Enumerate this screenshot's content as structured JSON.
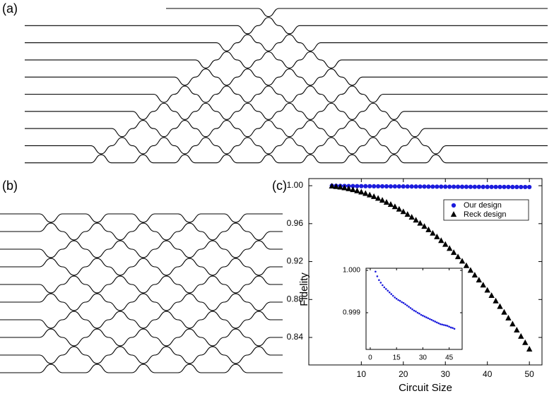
{
  "panels": [
    "(a)",
    "(b)",
    "(c)"
  ],
  "chart_data": [
    {
      "type": "scatter",
      "xlabel": "Circuit Size",
      "ylabel": "Fidelity",
      "x": [
        3,
        4,
        5,
        6,
        7,
        8,
        9,
        10,
        11,
        12,
        13,
        14,
        15,
        16,
        17,
        18,
        19,
        20,
        21,
        22,
        23,
        24,
        25,
        26,
        27,
        28,
        29,
        30,
        31,
        32,
        33,
        34,
        35,
        36,
        37,
        38,
        39,
        40,
        41,
        42,
        43,
        44,
        45,
        46,
        47,
        48,
        49,
        50
      ],
      "series": [
        {
          "name": "Our design",
          "color": "#1c1cdc",
          "marker": "circle",
          "values": [
            0.99997,
            0.99986,
            0.99977,
            0.99971,
            0.99965,
            0.9996,
            0.99956,
            0.99952,
            0.99948,
            0.99944,
            0.9994,
            0.99936,
            0.99933,
            0.9993,
            0.99928,
            0.99925,
            0.99923,
            0.9992,
            0.99917,
            0.99914,
            0.99911,
            0.99908,
            0.99905,
            0.99903,
            0.999,
            0.99898,
            0.99895,
            0.99893,
            0.99891,
            0.99889,
            0.99887,
            0.99885,
            0.99883,
            0.99881,
            0.99879,
            0.99877,
            0.99875,
            0.99873,
            0.99872,
            0.99871,
            0.9987,
            0.99869,
            0.99867,
            0.99865,
            0.99864,
            0.99862,
            0.99861,
            0.9986
          ]
        },
        {
          "name": "Reck design",
          "color": "#000000",
          "marker": "triangle",
          "values": [
            0.99938,
            0.9989,
            0.99828,
            0.99752,
            0.99662,
            0.99558,
            0.99441,
            0.9931,
            0.99165,
            0.99006,
            0.98834,
            0.98648,
            0.98448,
            0.98234,
            0.98006,
            0.97764,
            0.97509,
            0.9724,
            0.96957,
            0.9666,
            0.9635,
            0.96026,
            0.95688,
            0.95336,
            0.9497,
            0.9459,
            0.94197,
            0.9379,
            0.93369,
            0.92934,
            0.92486,
            0.92024,
            0.91548,
            0.91058,
            0.90554,
            0.90036,
            0.89505,
            0.8896,
            0.88401,
            0.87828,
            0.87242,
            0.86642,
            0.86028,
            0.854,
            0.84758,
            0.84102,
            0.83433,
            0.8275
          ]
        }
      ],
      "xlim": [
        -2.5,
        53
      ],
      "ylim": [
        0.811,
        1.0075
      ],
      "xticks": [
        10,
        20,
        30,
        40,
        50
      ],
      "yticks": [
        0.84,
        0.88,
        0.92,
        0.96,
        {
          "value": 1.0,
          "label": "1.00"
        }
      ],
      "legend": "upper right"
    },
    {
      "type": "scatter",
      "x": [
        3,
        4,
        5,
        6,
        7,
        8,
        9,
        10,
        11,
        12,
        13,
        14,
        15,
        16,
        17,
        18,
        19,
        20,
        21,
        22,
        23,
        24,
        25,
        26,
        27,
        28,
        29,
        30,
        31,
        32,
        33,
        34,
        35,
        36,
        37,
        38,
        39,
        40,
        41,
        42,
        43,
        44,
        45,
        46,
        47,
        48
      ],
      "series": [
        {
          "color": "#1c1cdc",
          "marker": "circle",
          "values": [
            0.99997,
            0.99986,
            0.99977,
            0.99971,
            0.99965,
            0.9996,
            0.99956,
            0.99952,
            0.99948,
            0.99944,
            0.9994,
            0.99936,
            0.99933,
            0.9993,
            0.99928,
            0.99925,
            0.99923,
            0.9992,
            0.99917,
            0.99914,
            0.99911,
            0.99908,
            0.99905,
            0.99903,
            0.999,
            0.99898,
            0.99895,
            0.99893,
            0.99891,
            0.99889,
            0.99887,
            0.99885,
            0.99883,
            0.99881,
            0.99879,
            0.99877,
            0.99875,
            0.99873,
            0.99872,
            0.99871,
            0.9987,
            0.99869,
            0.99867,
            0.99865,
            0.99864,
            0.99862
          ]
        }
      ],
      "xlim": [
        -2.4,
        52.4
      ],
      "ylim": [
        0.998133,
        1.00005
      ],
      "xticks": [
        0,
        15,
        30,
        45
      ],
      "yticks": [
        {
          "value": 1.0,
          "label": "1.000"
        },
        0.999
      ]
    }
  ]
}
